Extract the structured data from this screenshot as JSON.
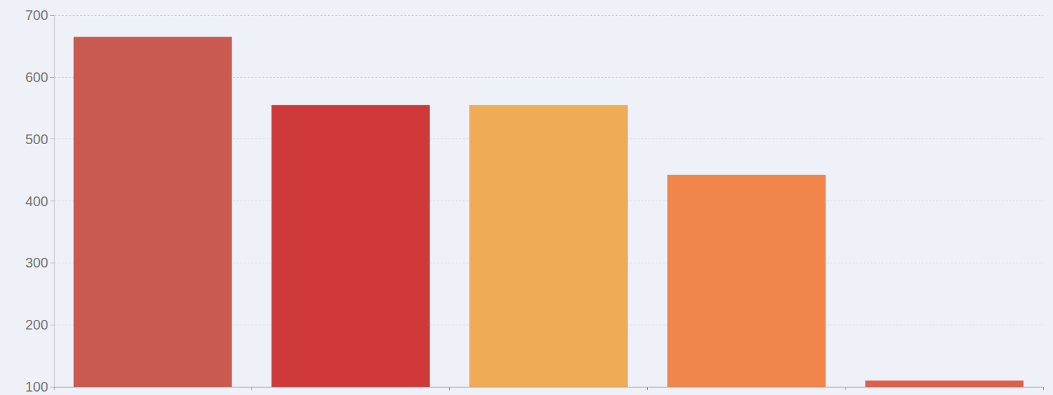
{
  "chart_data": {
    "type": "bar",
    "categories": [
      null,
      null,
      null,
      null,
      null
    ],
    "values": [
      665,
      555,
      555,
      442,
      110
    ],
    "colors": [
      "#c95a50",
      "#cf393a",
      "#f0ab56",
      "#f0864b",
      "#e05d47"
    ],
    "ylim": [
      100,
      700
    ],
    "yticks": [
      100,
      200,
      300,
      400,
      500,
      600,
      700
    ],
    "grid": true
  }
}
